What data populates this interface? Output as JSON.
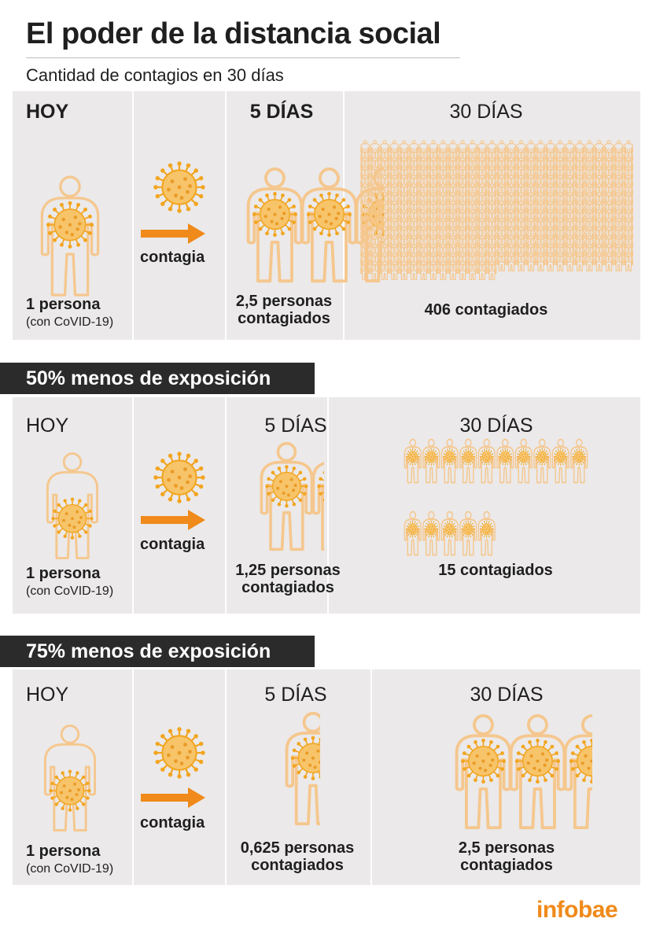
{
  "title": "El poder de la distancia social",
  "subtitle": "Cantidad de contagios en 30 días",
  "colors": {
    "figure": "#f5c78e",
    "virus": "#f2a51f",
    "arrow": "#f08a1a",
    "panel": "#ebe9e9",
    "band": "#2b2b2b",
    "brand": "#f08a1a"
  },
  "icons": {
    "person": "person-outline-icon",
    "virus": "virus-icon",
    "arrow": "arrow-right-icon"
  },
  "sections": [
    {
      "heading": "",
      "hoy_label": "HOY",
      "day5_label": "5 DÍAS",
      "day30_label": "30 DÍAS",
      "source_value": "1 persona",
      "source_note": "(con CoVID-19)",
      "arrow_label": "contagia",
      "day5_value_line1": "2,5 personas",
      "day5_value_line2": "contagiados",
      "day5_count": 2.5,
      "day30_value_line1": "406 contagiados",
      "day30_value_line2": "",
      "day30_count": 406
    },
    {
      "heading": "50% menos de exposición",
      "hoy_label": "HOY",
      "day5_label": "5 DÍAS",
      "day30_label": "30 DÍAS",
      "source_value": "1 persona",
      "source_note": "(con CoVID-19)",
      "arrow_label": "contagia",
      "day5_value_line1": "1,25 personas",
      "day5_value_line2": "contagiados",
      "day5_count": 1.25,
      "day30_value_line1": "15 contagiados",
      "day30_value_line2": "",
      "day30_count": 15
    },
    {
      "heading": "75% menos de exposición",
      "hoy_label": "HOY",
      "day5_label": "5 DÍAS",
      "day30_label": "30 DÍAS",
      "source_value": "1 persona",
      "source_note": "(con CoVID-19)",
      "arrow_label": "contagia",
      "day5_value_line1": "0,625 personas",
      "day5_value_line2": "contagiados",
      "day5_count": 0.625,
      "day30_value_line1": "2,5 personas",
      "day30_value_line2": "contagiados",
      "day30_count": 2.5
    }
  ],
  "brand": "infobae"
}
